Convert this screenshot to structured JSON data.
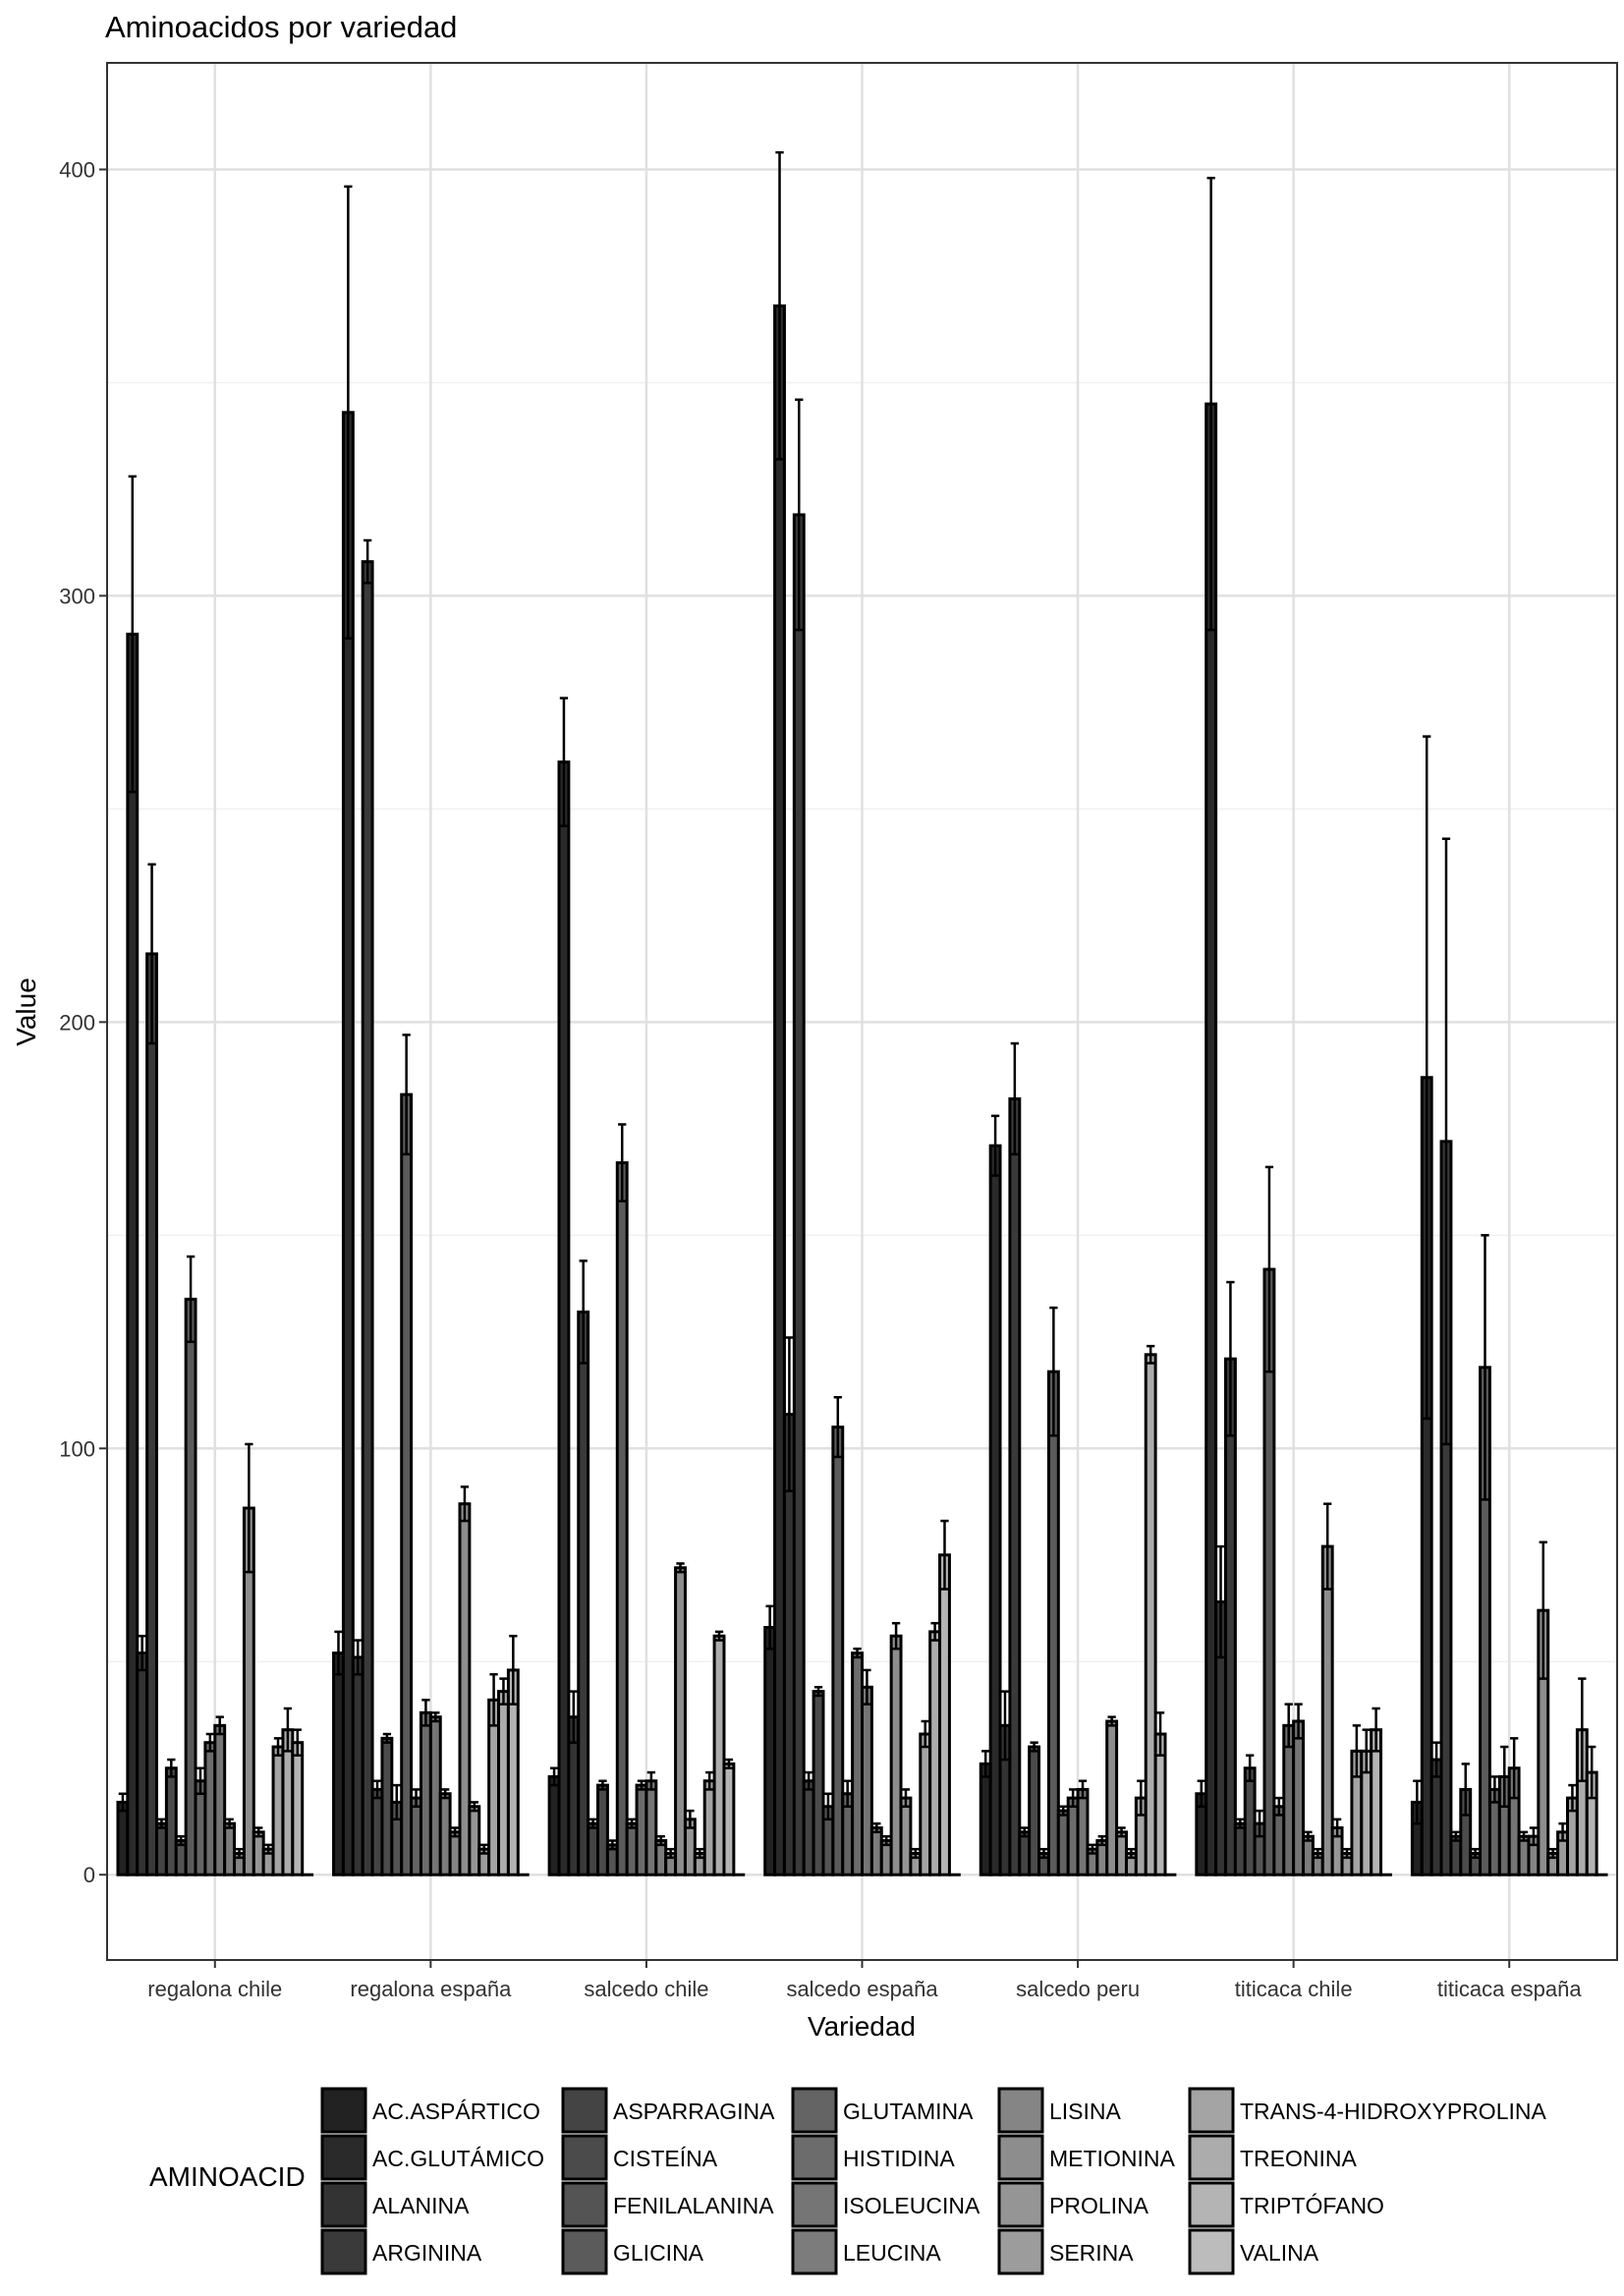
{
  "chart_data": {
    "type": "bar",
    "title": "Aminoacidos por variedad",
    "xlabel": "Variedad",
    "ylabel": "Value",
    "ylim": [
      -20,
      425
    ],
    "yticks": [
      0,
      100,
      200,
      300,
      400
    ],
    "grid": true,
    "error_bars": true,
    "legend_title": "AMINOACID",
    "legend_position": "bottom",
    "categories": [
      "regalona chile",
      "regalona españa",
      "salcedo chile",
      "salcedo españa",
      "salcedo peru",
      "titicaca chile",
      "titicaca españa"
    ],
    "series": [
      {
        "name": "AC.ASPÁRTICO",
        "color": "#222222",
        "values": [
          17,
          52,
          23,
          58,
          26,
          19,
          17
        ],
        "errors": [
          2,
          5,
          2,
          5,
          3,
          3,
          5
        ]
      },
      {
        "name": "AC.GLUTÁMICO",
        "color": "#2a2a2a",
        "values": [
          291,
          343,
          261,
          368,
          171,
          345,
          187
        ],
        "errors": [
          37,
          53,
          15,
          36,
          7,
          53,
          80
        ]
      },
      {
        "name": "ALANINA",
        "color": "#333333",
        "values": [
          52,
          51,
          37,
          108,
          35,
          64,
          27
        ],
        "errors": [
          4,
          4,
          6,
          18,
          8,
          13,
          4
        ]
      },
      {
        "name": "ARGININA",
        "color": "#3a3a3a",
        "values": [
          216,
          308,
          132,
          319,
          182,
          121,
          172
        ],
        "errors": [
          21,
          5,
          12,
          27,
          13,
          18,
          71
        ]
      },
      {
        "name": "ASPARRAGINA",
        "color": "#444444",
        "values": [
          12,
          20,
          12,
          22,
          10,
          12,
          9
        ],
        "errors": [
          1,
          2,
          1,
          2,
          1,
          1,
          1
        ]
      },
      {
        "name": "CISTEÍNA",
        "color": "#4b4b4b",
        "values": [
          25,
          32,
          21,
          43,
          30,
          25,
          20
        ],
        "errors": [
          2,
          1,
          1,
          1,
          1,
          3,
          6
        ]
      },
      {
        "name": "FENILALANINA",
        "color": "#545454",
        "values": [
          8,
          17,
          7,
          16,
          5,
          12,
          5
        ],
        "errors": [
          1,
          4,
          1,
          3,
          1,
          3,
          1
        ]
      },
      {
        "name": "GLICINA",
        "color": "#5b5b5b",
        "values": [
          135,
          183,
          167,
          105,
          118,
          142,
          119
        ],
        "errors": [
          10,
          14,
          9,
          7,
          15,
          24,
          31
        ]
      },
      {
        "name": "GLUTAMINA",
        "color": "#646464",
        "values": [
          22,
          18,
          12,
          19,
          15,
          16,
          20
        ],
        "errors": [
          3,
          2,
          1,
          3,
          1,
          2,
          3
        ]
      },
      {
        "name": "HISTIDINA",
        "color": "#6c6c6c",
        "values": [
          31,
          38,
          21,
          52,
          18,
          35,
          23
        ],
        "errors": [
          2,
          3,
          1,
          1,
          2,
          5,
          7
        ]
      },
      {
        "name": "ISOLEUCINA",
        "color": "#757575",
        "values": [
          35,
          37,
          22,
          44,
          20,
          36,
          25
        ],
        "errors": [
          2,
          1,
          2,
          4,
          2,
          4,
          7
        ]
      },
      {
        "name": "LEUCINA",
        "color": "#7c7c7c",
        "values": [
          12,
          19,
          8,
          11,
          6,
          9,
          9
        ],
        "errors": [
          1,
          1,
          1,
          1,
          1,
          1,
          1
        ]
      },
      {
        "name": "LISINA",
        "color": "#858585",
        "values": [
          5,
          10,
          5,
          8,
          8,
          5,
          9
        ],
        "errors": [
          1,
          1,
          1,
          1,
          1,
          1,
          2
        ]
      },
      {
        "name": "METIONINA",
        "color": "#8d8d8d",
        "values": [
          86,
          87,
          72,
          56,
          36,
          77,
          62
        ],
        "errors": [
          15,
          4,
          1,
          3,
          1,
          10,
          16
        ]
      },
      {
        "name": "PROLINA",
        "color": "#959595",
        "values": [
          10,
          16,
          13,
          18,
          10,
          11,
          5
        ],
        "errors": [
          1,
          1,
          2,
          2,
          1,
          2,
          1
        ]
      },
      {
        "name": "SERINA",
        "color": "#9c9c9c",
        "values": [
          6,
          6,
          5,
          5,
          5,
          5,
          10
        ],
        "errors": [
          1,
          1,
          1,
          1,
          1,
          1,
          2
        ]
      },
      {
        "name": "TRANS-4-HIDROXYPROLINA",
        "color": "#a4a4a4",
        "values": [
          30,
          41,
          22,
          33,
          18,
          29,
          18
        ],
        "errors": [
          2,
          6,
          2,
          3,
          4,
          6,
          3
        ]
      },
      {
        "name": "TREONINA",
        "color": "#acacac",
        "values": [
          34,
          43,
          56,
          57,
          122,
          29,
          34
        ],
        "errors": [
          5,
          3,
          1,
          2,
          2,
          5,
          12
        ]
      },
      {
        "name": "TRIPTÓFANO",
        "color": "#b4b4b4",
        "values": [
          31,
          48,
          26,
          75,
          33,
          34,
          24
        ],
        "errors": [
          3,
          8,
          1,
          8,
          5,
          5,
          6
        ]
      },
      {
        "name": "VALINA",
        "color": "#bcbcbc",
        "values": [
          0,
          0,
          0,
          0,
          0,
          0,
          0
        ],
        "errors": [
          0,
          0,
          0,
          0,
          0,
          0,
          0
        ]
      }
    ]
  }
}
